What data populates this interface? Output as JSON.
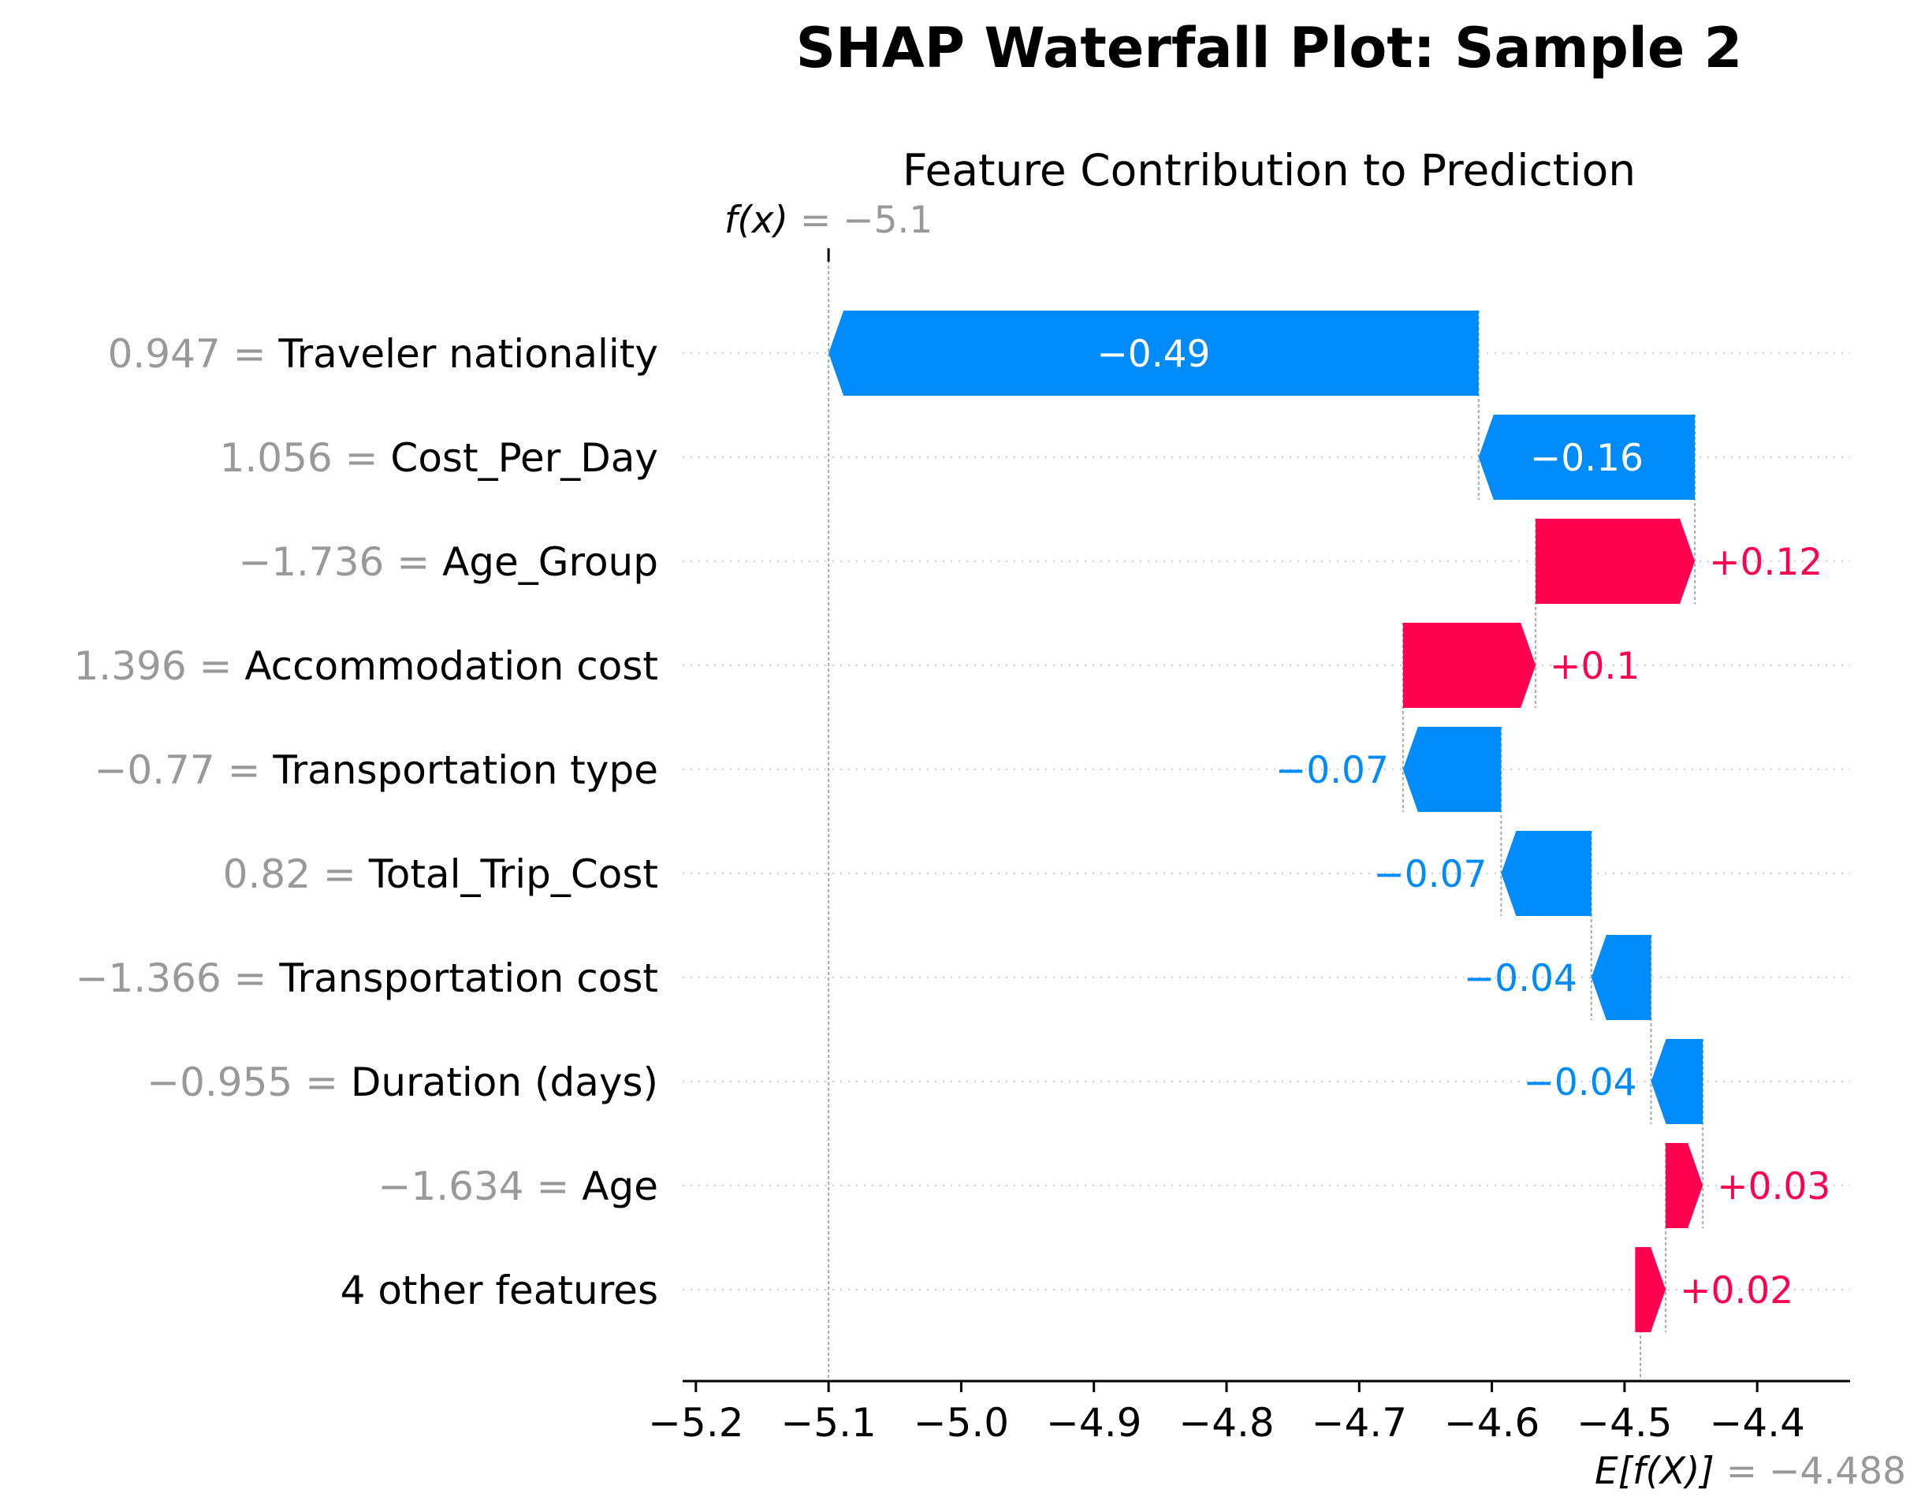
{
  "chart_data": {
    "type": "waterfall",
    "title": "SHAP Waterfall Plot: Sample 2",
    "subtitle": "Feature Contribution to Prediction",
    "fx_label": "f(x)",
    "fx_value_text": "−5.1",
    "fx_value": -5.1,
    "base_label": "E[f(X)]",
    "base_value_text": "−4.488",
    "base_value": -4.488,
    "xlim": [
      -5.21,
      -4.33
    ],
    "xticks": [
      -5.2,
      -5.1,
      -5.0,
      -4.9,
      -4.8,
      -4.7,
      -4.6,
      -4.5,
      -4.4
    ],
    "xtick_labels": [
      "−5.2",
      "−5.1",
      "−5.0",
      "−4.9",
      "−4.8",
      "−4.7",
      "−4.6",
      "−4.5",
      "−4.4"
    ],
    "colors": {
      "positive": "#ff0051",
      "negative": "#008bfb",
      "feature_value": "#999999",
      "grid": "#cccccc"
    },
    "features": [
      {
        "value": "0.947",
        "name": "Traveler nationality",
        "shap": -0.49,
        "label": "−0.49"
      },
      {
        "value": "1.056",
        "name": "Cost_Per_Day",
        "shap": -0.163,
        "label": "−0.16"
      },
      {
        "value": "−1.736",
        "name": "Age_Group",
        "shap": 0.12,
        "label": "+0.12"
      },
      {
        "value": "1.396",
        "name": "Accommodation cost",
        "shap": 0.1,
        "label": "+0.1"
      },
      {
        "value": "−0.77",
        "name": "Transportation type",
        "shap": -0.074,
        "label": "−0.07"
      },
      {
        "value": "0.82",
        "name": "Total_Trip_Cost",
        "shap": -0.068,
        "label": "−0.07"
      },
      {
        "value": "−1.366",
        "name": "Transportation cost",
        "shap": -0.045,
        "label": "−0.04"
      },
      {
        "value": "−0.955",
        "name": "Duration (days)",
        "shap": -0.039,
        "label": "−0.04"
      },
      {
        "value": "−1.634",
        "name": "Age",
        "shap": 0.028,
        "label": "+0.03"
      },
      {
        "value": "",
        "name": "4 other features",
        "shap": 0.023,
        "label": "+0.02"
      }
    ]
  }
}
